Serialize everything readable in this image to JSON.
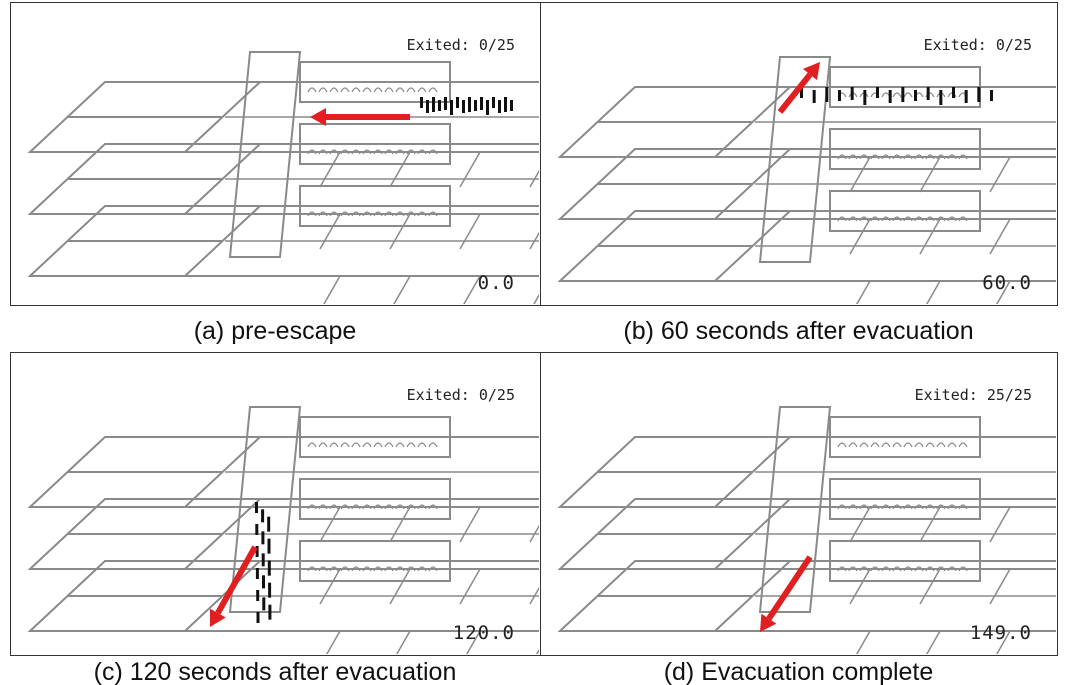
{
  "panels": [
    {
      "exited": "Exited: 0/25",
      "time": "0.0",
      "caption": "(a) pre-escape"
    },
    {
      "exited": "Exited: 0/25",
      "time": "60.0",
      "caption": "(b) 60 seconds after evacuation"
    },
    {
      "exited": "Exited: 0/25",
      "time": "120.0",
      "caption": "(c) 120 seconds after evacuation"
    },
    {
      "exited": "Exited: 25/25",
      "time": "149.0",
      "caption": "(d) Evacuation complete"
    }
  ]
}
